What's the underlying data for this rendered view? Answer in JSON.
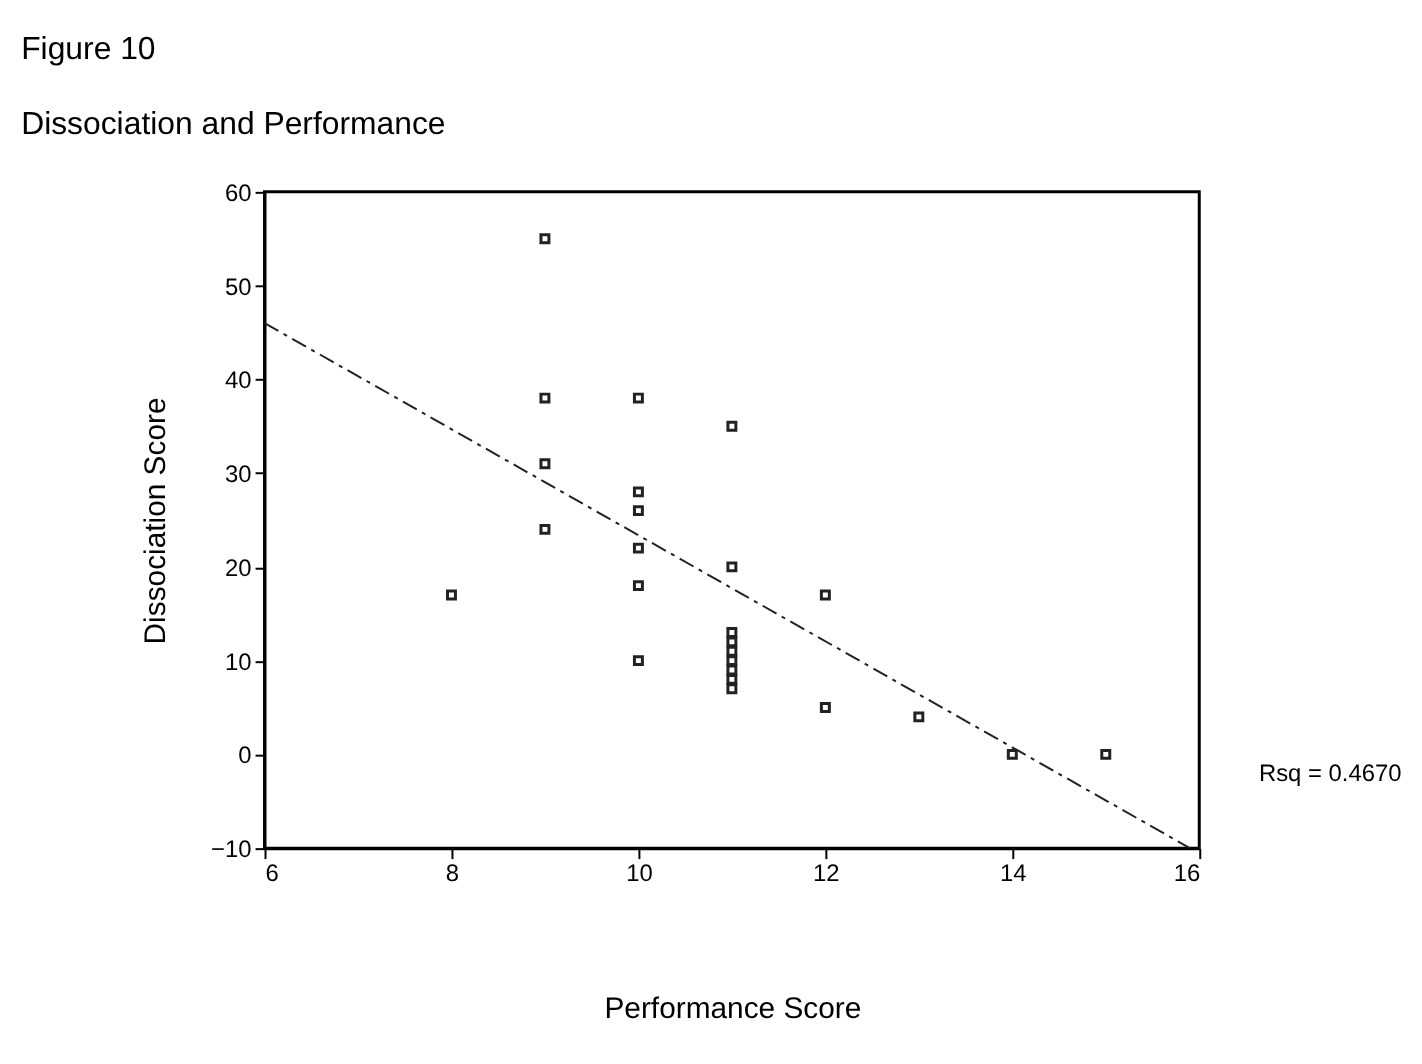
{
  "chart_data": {
    "type": "scatter",
    "title": "Figure 10",
    "subtitle": "Dissociation and Performance",
    "xlabel": "Performance Score",
    "ylabel": "Dissociation Score",
    "annotations": [
      "Rsq = 0.4670"
    ],
    "series": [
      {
        "color": "#222222",
        "marker": "square",
        "x": [
          8,
          9,
          9,
          9,
          9,
          10,
          10,
          10,
          10,
          10,
          10,
          11,
          11,
          11,
          11,
          11,
          11,
          11,
          11,
          11,
          12,
          12,
          13,
          14,
          15
        ],
        "values": [
          17,
          55,
          38,
          31,
          24,
          38,
          28,
          26,
          22,
          18,
          10,
          35,
          20,
          13,
          12,
          11,
          10,
          9,
          8,
          7,
          17,
          5,
          4,
          0,
          0
        ]
      },
      {
        "type": "line",
        "color": "#222222",
        "line_style": "dashed",
        "marker": "none",
        "x": [
          6,
          15.9
        ],
        "values": [
          46,
          -10
        ]
      }
    ],
    "xlim": [
      6,
      16
    ],
    "xticks": [
      6,
      8,
      10,
      12,
      14,
      16
    ],
    "ylim": [
      -10,
      60
    ],
    "yticks": [
      -10,
      0,
      10,
      20,
      30,
      40,
      50,
      60
    ],
    "grid": false
  }
}
